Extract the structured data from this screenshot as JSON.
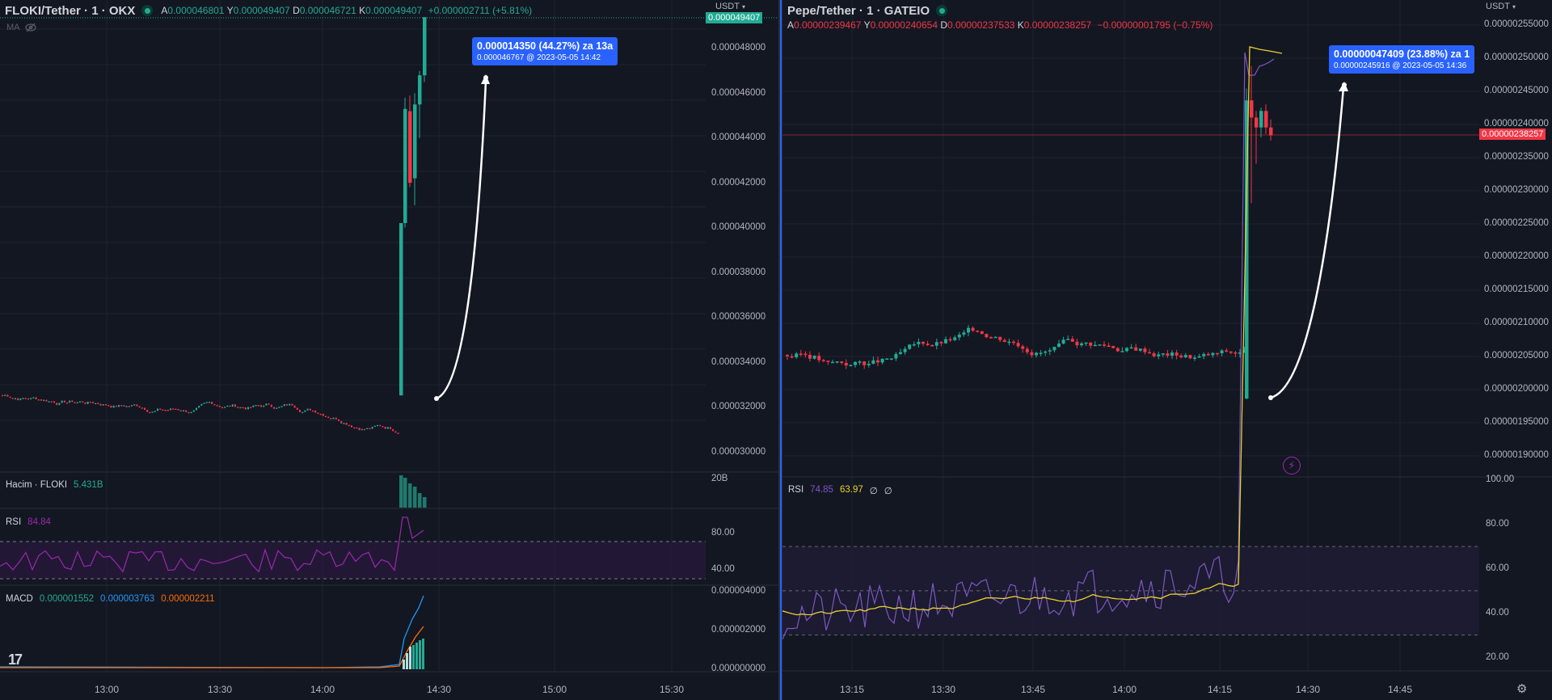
{
  "left": {
    "symbol": "FLOKI/Tether · 1 · OKX",
    "ohlc": {
      "o_label": "A",
      "o": "0.000046801",
      "h_label": "Y",
      "h": "0.000049407",
      "l_label": "D",
      "l": "0.000046721",
      "c_label": "K",
      "c": "0.000049407",
      "change": "+0.000002711 (+5.81%)"
    },
    "ma_label": "MA",
    "currency": "USDT",
    "last_price": "0.000049407",
    "price_ticks": [
      "0.000048000",
      "0.000046000",
      "0.000044000",
      "0.000042000",
      "0.000040000",
      "0.000038000",
      "0.000036000",
      "0.000034000",
      "0.000032000",
      "0.000030000"
    ],
    "measure": {
      "line1": "0.000014350 (44.27%) za 13a",
      "line2": "0.000046767 @ 2023-05-05   14:42"
    },
    "volume": {
      "label": "Hacim · FLOKI",
      "value": "5.431B",
      "axis": "20B"
    },
    "rsi": {
      "label": "RSI",
      "value": "84.84",
      "ticks": [
        "80.00",
        "40.00"
      ]
    },
    "macd": {
      "label": "MACD",
      "v1": "0.000001552",
      "v2": "0.000003763",
      "v3": "0.000002211",
      "ticks": [
        "0.000004000",
        "0.000002000",
        "0.000000000"
      ]
    },
    "time_ticks": [
      "13:00",
      "13:30",
      "14:00",
      "14:30",
      "15:00",
      "15:30"
    ],
    "logo": "17"
  },
  "right": {
    "symbol": "Pepe/Tether · 1 · GATEIO",
    "ohlc": {
      "o_label": "A",
      "o": "0.00000239467",
      "h_label": "Y",
      "h": "0.00000240654",
      "l_label": "D",
      "l": "0.00000237533",
      "c_label": "K",
      "c": "0.00000238257",
      "change": "−0.00000001795 (−0.75%)"
    },
    "currency": "USDT",
    "last_price": "0.00000238257",
    "price_ticks": [
      "0.00000255000",
      "0.00000250000",
      "0.00000245000",
      "0.00000240000",
      "0.00000235000",
      "0.00000230000",
      "0.00000225000",
      "0.00000220000",
      "0.00000215000",
      "0.00000210000",
      "0.00000205000",
      "0.00000200000",
      "0.00000195000",
      "0.00000190000"
    ],
    "measure": {
      "line1": "0.00000047409 (23.88%) za 1",
      "line2": "0.00000245916 @ 2023-05-05   14:36"
    },
    "rsi": {
      "label": "RSI",
      "v1": "74.85",
      "v2": "63.97",
      "v3": "∅",
      "v4": "∅",
      "ticks": [
        "100.00",
        "80.00",
        "60.00",
        "40.00",
        "20.00"
      ]
    },
    "time_ticks": [
      "13:15",
      "13:30",
      "13:45",
      "14:00",
      "14:15",
      "14:30",
      "14:45"
    ]
  },
  "colors": {
    "up": "#22ab94",
    "down": "#f23645",
    "accent": "#2962ff",
    "rsi_left": "#9c27b0",
    "rsi_right": "#7e57c2",
    "rsi_ma": "#e8d22e",
    "macd_line": "#2962ff",
    "signal_line": "#ff6d00"
  },
  "icons": [
    "eye-off-icon",
    "chevron-down-icon",
    "lightning-icon",
    "gear-icon",
    "tradingview-logo-icon"
  ]
}
